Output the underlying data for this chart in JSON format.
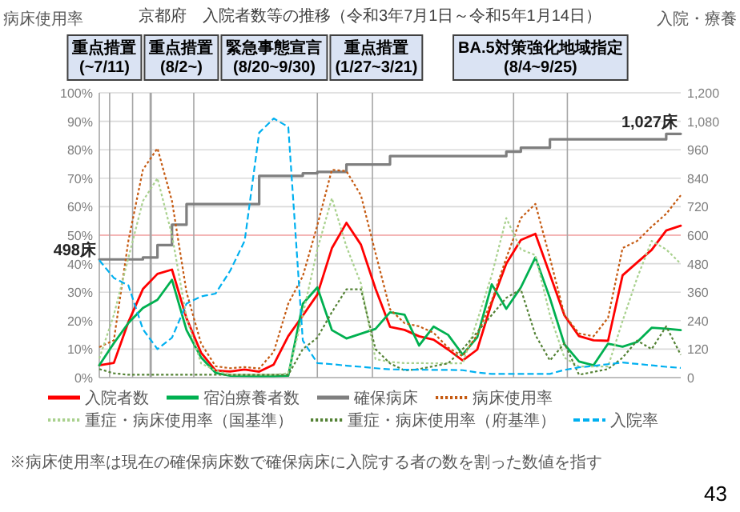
{
  "chart_data": {
    "type": "line",
    "title": "京都府　入院者数等の推移（令和3年7月1日～令和5年1月14日）",
    "ylabel": "病床使用率",
    "y2label": "入院・療養",
    "categories": [
      null,
      null,
      null,
      null,
      null,
      null,
      null,
      null,
      null,
      null,
      null,
      null,
      null,
      null,
      null,
      null,
      null,
      null,
      null,
      null,
      null,
      null,
      null,
      null,
      null,
      null,
      null,
      null,
      null,
      null,
      null,
      null,
      null,
      null,
      null,
      null,
      null,
      null,
      null,
      null,
      null
    ],
    "ylim": [
      0,
      100
    ],
    "yticks": [
      {
        "value": 0,
        "label": "0%"
      },
      {
        "value": 10,
        "label": "10%"
      },
      {
        "value": 20,
        "label": "20%"
      },
      {
        "value": 30,
        "label": "30%"
      },
      {
        "value": 40,
        "label": "40%"
      },
      {
        "value": 50,
        "label": "50%"
      },
      {
        "value": 60,
        "label": "60%"
      },
      {
        "value": 70,
        "label": "70%"
      },
      {
        "value": 80,
        "label": "80%"
      },
      {
        "value": 90,
        "label": "90%"
      },
      {
        "value": 100,
        "label": "100%"
      }
    ],
    "y2lim": [
      0,
      1200
    ],
    "y2ticks": [
      0,
      120,
      240,
      360,
      480,
      600,
      720,
      840,
      960,
      {
        "value": 1080,
        "label": "1,080"
      },
      {
        "value": 1200,
        "label": "1,200"
      }
    ],
    "grid": "y",
    "legend": "bottom",
    "ref_lines": [
      {
        "axis": "y",
        "value": 50,
        "color": "#f4b6b6"
      }
    ],
    "series": [
      {
        "name": "入院者数",
        "axis": "y2",
        "color": "#ff0000",
        "line_style": "solid",
        "values": [
          52,
          62,
          234,
          373,
          437,
          455,
          250,
          105,
          30,
          26,
          34,
          25,
          55,
          175,
          261,
          350,
          545,
          652,
          560,
          375,
          214,
          201,
          174,
          160,
          118,
          72,
          118,
          316,
          480,
          580,
          606,
          435,
          262,
          175,
          157,
          155,
          431,
          485,
          538,
          620,
          640
        ]
      },
      {
        "name": "宿泊療養者数",
        "axis": "y2",
        "color": "#00b050",
        "line_style": "solid",
        "values": [
          52,
          145,
          230,
          293,
          328,
          412,
          200,
          85,
          20,
          8,
          7,
          6,
          6,
          8,
          311,
          380,
          200,
          165,
          185,
          205,
          275,
          265,
          135,
          215,
          180,
          97,
          170,
          393,
          290,
          380,
          506,
          335,
          140,
          68,
          52,
          143,
          130,
          150,
          210,
          206,
          200
        ]
      },
      {
        "name": "確保病床",
        "type": "step",
        "axis": "y2",
        "color": "#7f7f7f",
        "line_style": "solid",
        "values": [
          498,
          498,
          498,
          506,
          558,
          644,
          731,
          731,
          731,
          731,
          731,
          850,
          850,
          850,
          861,
          867,
          867,
          898,
          898,
          898,
          933,
          933,
          933,
          933,
          933,
          933,
          933,
          933,
          952,
          969,
          969,
          1004,
          1004,
          1004,
          1004,
          1004,
          1004,
          1004,
          1004,
          1027,
          1027
        ],
        "value_labels": [
          "498床",
          null,
          null,
          null,
          null,
          null,
          null,
          null,
          null,
          null,
          null,
          null,
          null,
          null,
          null,
          null,
          null,
          null,
          null,
          null,
          null,
          null,
          null,
          null,
          null,
          null,
          null,
          null,
          null,
          null,
          null,
          null,
          null,
          null,
          null,
          null,
          null,
          null,
          null,
          null,
          "1,027床"
        ]
      },
      {
        "name": "病床使用率",
        "color": "#c55a11",
        "line_style": "dotted",
        "values": [
          10.7,
          13.1,
          48,
          73,
          80.5,
          62,
          30,
          12,
          4,
          3.3,
          3.7,
          3.2,
          9,
          26,
          35.6,
          53.5,
          73,
          72.5,
          64,
          43.8,
          24,
          19.1,
          18,
          15.7,
          10.5,
          7.5,
          15,
          27,
          42,
          56,
          61,
          42,
          22,
          15.5,
          14.5,
          21,
          45.5,
          48,
          53,
          57.5,
          64
        ]
      },
      {
        "name": "重症・病床使用率（国基準）",
        "color": "#a9d18e",
        "line_style": "dotted",
        "values": [
          6.7,
          22,
          42,
          62,
          70,
          50,
          21,
          5,
          2.5,
          1,
          1,
          1,
          1,
          1.5,
          22,
          45,
          63,
          46,
          33,
          6.5,
          5.5,
          5.1,
          5.1,
          5,
          5,
          5,
          20,
          36,
          56,
          45,
          43,
          22,
          7,
          3.9,
          3.9,
          3.9,
          19.9,
          35,
          48,
          45,
          40
        ]
      },
      {
        "name": "重症・病床使用率（府基準）",
        "color": "#548235",
        "line_style": "dotted",
        "values": [
          3,
          1.5,
          1,
          1,
          1,
          1,
          1,
          1,
          1,
          1,
          1,
          1,
          1,
          1,
          10,
          14,
          23,
          31,
          31,
          10,
          5,
          2.5,
          3,
          4,
          5,
          10,
          16,
          22,
          28,
          31,
          15,
          6,
          12,
          1,
          2,
          3,
          7,
          13,
          10,
          18,
          8
        ]
      },
      {
        "name": "入院率",
        "color": "#00b0f0",
        "line_style": "dashed",
        "values": [
          41.2,
          35,
          32.4,
          17,
          10,
          14,
          26,
          28.5,
          29.5,
          37.5,
          48,
          86,
          91,
          88,
          13,
          5.1,
          4.7,
          4.2,
          3.8,
          3.3,
          2.9,
          2.8,
          2.8,
          2.7,
          2.7,
          2.6,
          1.8,
          1.3,
          1.3,
          1.3,
          1.3,
          1.3,
          2.7,
          3.6,
          4.1,
          4.7,
          5.3,
          4.8,
          4.3,
          3.8,
          3.4
        ]
      }
    ],
    "annotations": [
      "重点措置\n(~7/11)",
      "重点措置\n(8/2~)",
      "緊急事態宣言\n(8/20~9/30)",
      "重点措置\n(1/27~3/21)",
      "BA.5対策強化地域指定\n(8/4~9/25)",
      "※病床使用率は現在の確保病床数で確保病床に入院する者の数を割った数値を指す",
      "43"
    ]
  }
}
